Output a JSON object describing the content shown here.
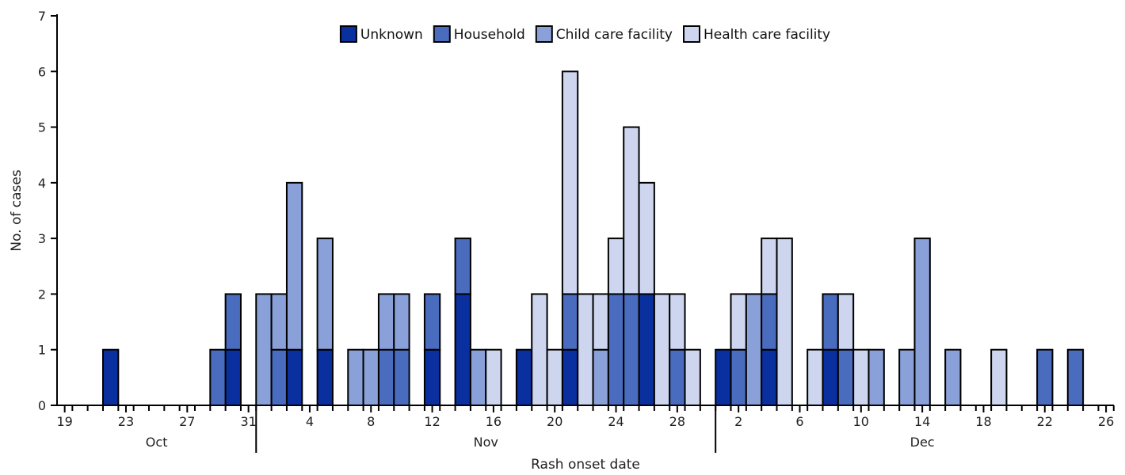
{
  "chart_data": {
    "type": "bar",
    "stacked": true,
    "title": "",
    "xlabel": "Rash onset date",
    "ylabel": "No. of cases",
    "ylim": [
      0,
      7
    ],
    "yticks": [
      0,
      1,
      2,
      3,
      4,
      5,
      6,
      7
    ],
    "grid": false,
    "legend_position": "top-center",
    "series": [
      {
        "name": "Unknown",
        "color": "#0a2f9e"
      },
      {
        "name": "Household",
        "color": "#4a6cbf"
      },
      {
        "name": "Child care facility",
        "color": "#8aa0d8"
      },
      {
        "name": "Health care facility",
        "color": "#cdd6ee"
      }
    ],
    "date_range": {
      "first": "Oct 19",
      "last": "Dec 27"
    },
    "x_tick_labels": [
      {
        "date": "Oct 19",
        "label": "19"
      },
      {
        "date": "Oct 23",
        "label": "23"
      },
      {
        "date": "Oct 27",
        "label": "27"
      },
      {
        "date": "Oct 31",
        "label": "31"
      },
      {
        "date": "Nov 4",
        "label": "4"
      },
      {
        "date": "Nov 8",
        "label": "8"
      },
      {
        "date": "Nov 12",
        "label": "12"
      },
      {
        "date": "Nov 16",
        "label": "16"
      },
      {
        "date": "Nov 20",
        "label": "20"
      },
      {
        "date": "Nov 24",
        "label": "24"
      },
      {
        "date": "Nov 28",
        "label": "28"
      },
      {
        "date": "Dec 2",
        "label": "2"
      },
      {
        "date": "Dec 6",
        "label": "6"
      },
      {
        "date": "Dec 10",
        "label": "10"
      },
      {
        "date": "Dec 14",
        "label": "14"
      },
      {
        "date": "Dec 18",
        "label": "18"
      },
      {
        "date": "Dec 22",
        "label": "22"
      },
      {
        "date": "Dec 26",
        "label": "26"
      }
    ],
    "months": [
      {
        "label": "Oct",
        "first": "Oct 19",
        "last": "Oct 31"
      },
      {
        "label": "Nov",
        "first": "Nov 1",
        "last": "Nov 30"
      },
      {
        "label": "Dec",
        "first": "Dec 1",
        "last": "Dec 27"
      }
    ],
    "cases": [
      {
        "date": "Oct 22",
        "values": [
          1,
          0,
          0,
          0
        ]
      },
      {
        "date": "Oct 29",
        "values": [
          0,
          1,
          0,
          0
        ]
      },
      {
        "date": "Oct 30",
        "values": [
          1,
          1,
          0,
          0
        ]
      },
      {
        "date": "Nov 1",
        "values": [
          0,
          0,
          2,
          0
        ]
      },
      {
        "date": "Nov 2",
        "values": [
          0,
          1,
          1,
          0
        ]
      },
      {
        "date": "Nov 3",
        "values": [
          1,
          0,
          3,
          0
        ]
      },
      {
        "date": "Nov 5",
        "values": [
          1,
          0,
          2,
          0
        ]
      },
      {
        "date": "Nov 7",
        "values": [
          0,
          0,
          1,
          0
        ]
      },
      {
        "date": "Nov 8",
        "values": [
          0,
          0,
          1,
          0
        ]
      },
      {
        "date": "Nov 9",
        "values": [
          0,
          1,
          1,
          0
        ]
      },
      {
        "date": "Nov 10",
        "values": [
          0,
          1,
          1,
          0
        ]
      },
      {
        "date": "Nov 12",
        "values": [
          1,
          1,
          0,
          0
        ]
      },
      {
        "date": "Nov 14",
        "values": [
          2,
          1,
          0,
          0
        ]
      },
      {
        "date": "Nov 15",
        "values": [
          0,
          0,
          1,
          0
        ]
      },
      {
        "date": "Nov 16",
        "values": [
          0,
          0,
          0,
          1
        ]
      },
      {
        "date": "Nov 18",
        "values": [
          1,
          0,
          0,
          0
        ]
      },
      {
        "date": "Nov 19",
        "values": [
          0,
          0,
          0,
          2
        ]
      },
      {
        "date": "Nov 20",
        "values": [
          0,
          0,
          0,
          1
        ]
      },
      {
        "date": "Nov 21",
        "values": [
          1,
          1,
          0,
          4
        ]
      },
      {
        "date": "Nov 22",
        "values": [
          0,
          0,
          0,
          2
        ]
      },
      {
        "date": "Nov 23",
        "values": [
          0,
          0,
          1,
          1
        ]
      },
      {
        "date": "Nov 24",
        "values": [
          0,
          2,
          0,
          1
        ]
      },
      {
        "date": "Nov 25",
        "values": [
          0,
          2,
          0,
          3
        ]
      },
      {
        "date": "Nov 26",
        "values": [
          2,
          0,
          0,
          2
        ]
      },
      {
        "date": "Nov 27",
        "values": [
          0,
          0,
          0,
          2
        ]
      },
      {
        "date": "Nov 28",
        "values": [
          0,
          1,
          0,
          1
        ]
      },
      {
        "date": "Nov 29",
        "values": [
          0,
          0,
          0,
          1
        ]
      },
      {
        "date": "Dec 1",
        "values": [
          1,
          0,
          0,
          0
        ]
      },
      {
        "date": "Dec 2",
        "values": [
          0,
          1,
          0,
          1
        ]
      },
      {
        "date": "Dec 3",
        "values": [
          0,
          0,
          2,
          0
        ]
      },
      {
        "date": "Dec 4",
        "values": [
          1,
          1,
          0,
          1
        ]
      },
      {
        "date": "Dec 5",
        "values": [
          0,
          0,
          0,
          3
        ]
      },
      {
        "date": "Dec 7",
        "values": [
          0,
          0,
          0,
          1
        ]
      },
      {
        "date": "Dec 8",
        "values": [
          1,
          1,
          0,
          0
        ]
      },
      {
        "date": "Dec 9",
        "values": [
          0,
          1,
          0,
          1
        ]
      },
      {
        "date": "Dec 10",
        "values": [
          0,
          0,
          0,
          1
        ]
      },
      {
        "date": "Dec 11",
        "values": [
          0,
          0,
          1,
          0
        ]
      },
      {
        "date": "Dec 13",
        "values": [
          0,
          0,
          1,
          0
        ]
      },
      {
        "date": "Dec 14",
        "values": [
          0,
          0,
          3,
          0
        ]
      },
      {
        "date": "Dec 16",
        "values": [
          0,
          0,
          1,
          0
        ]
      },
      {
        "date": "Dec 19",
        "values": [
          0,
          0,
          0,
          1
        ]
      },
      {
        "date": "Dec 22",
        "values": [
          0,
          1,
          0,
          0
        ]
      },
      {
        "date": "Dec 24",
        "values": [
          0,
          1,
          0,
          0
        ]
      }
    ]
  }
}
